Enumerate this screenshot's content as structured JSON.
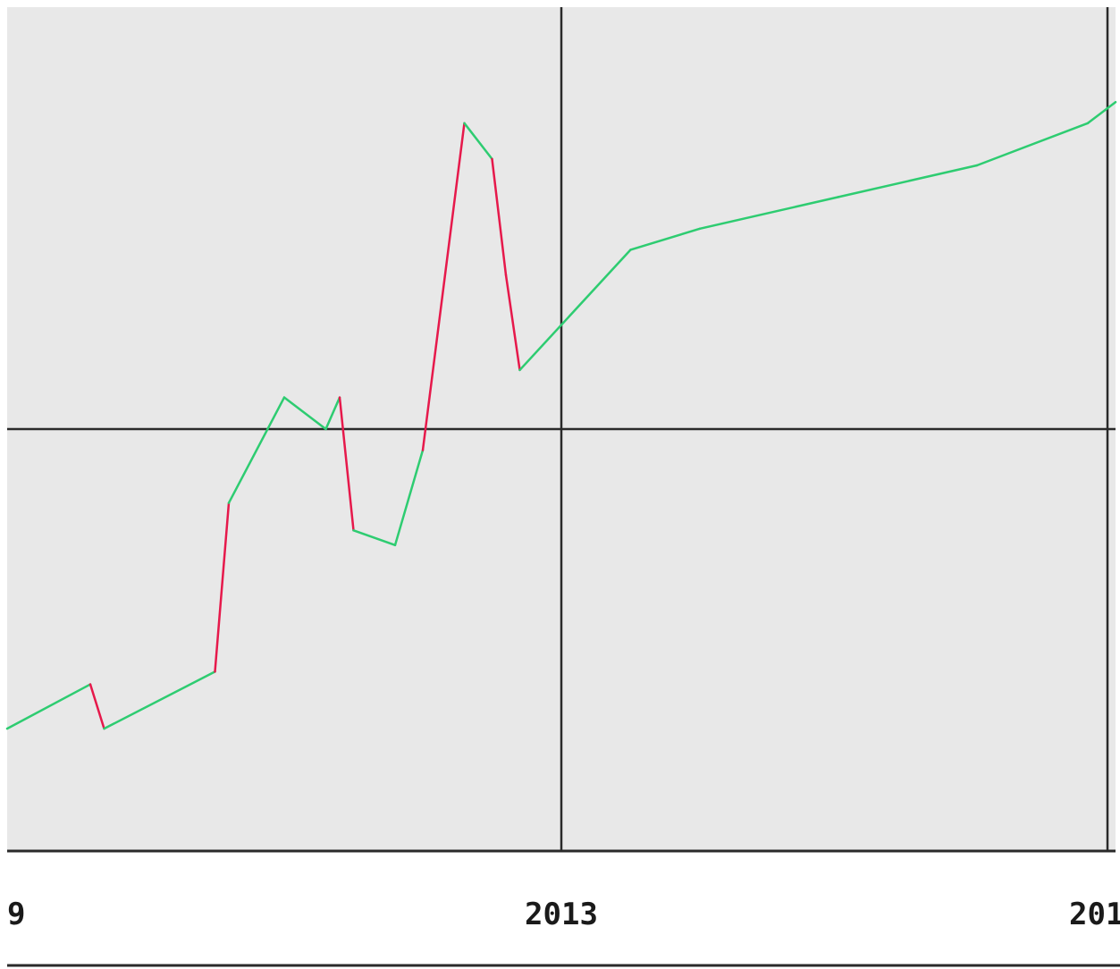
{
  "chart_data": {
    "type": "line",
    "title": "",
    "xlabel": "",
    "ylabel": "",
    "x_tick_labels": [
      "9",
      "2013",
      "201"
    ],
    "xlim": [
      2009,
      2017
    ],
    "ylim": [
      -2,
      2
    ],
    "grid": true,
    "colors": {
      "up": "#2ecc71",
      "down": "#e6194b",
      "plot_background": "#e8e8e8",
      "grid": "#2a2a2a",
      "axis": "#2a2a2a"
    },
    "series": [
      {
        "x": [
          2009.0,
          2009.6,
          2009.7,
          2010.5,
          2010.6,
          2011.0,
          2011.3,
          2011.4,
          2011.5,
          2011.8,
          2012.0,
          2012.3,
          2012.5,
          2012.6,
          2012.7,
          2013.5,
          2014.0,
          2015.0,
          2016.0,
          2016.8,
          2017.0
        ],
        "values": [
          -1.42,
          -1.21,
          -1.42,
          -1.15,
          -0.35,
          0.15,
          0.0,
          0.15,
          -0.48,
          -0.55,
          -0.1,
          1.45,
          1.28,
          0.73,
          0.28,
          0.85,
          0.95,
          1.1,
          1.25,
          1.45,
          1.55
        ]
      }
    ]
  }
}
